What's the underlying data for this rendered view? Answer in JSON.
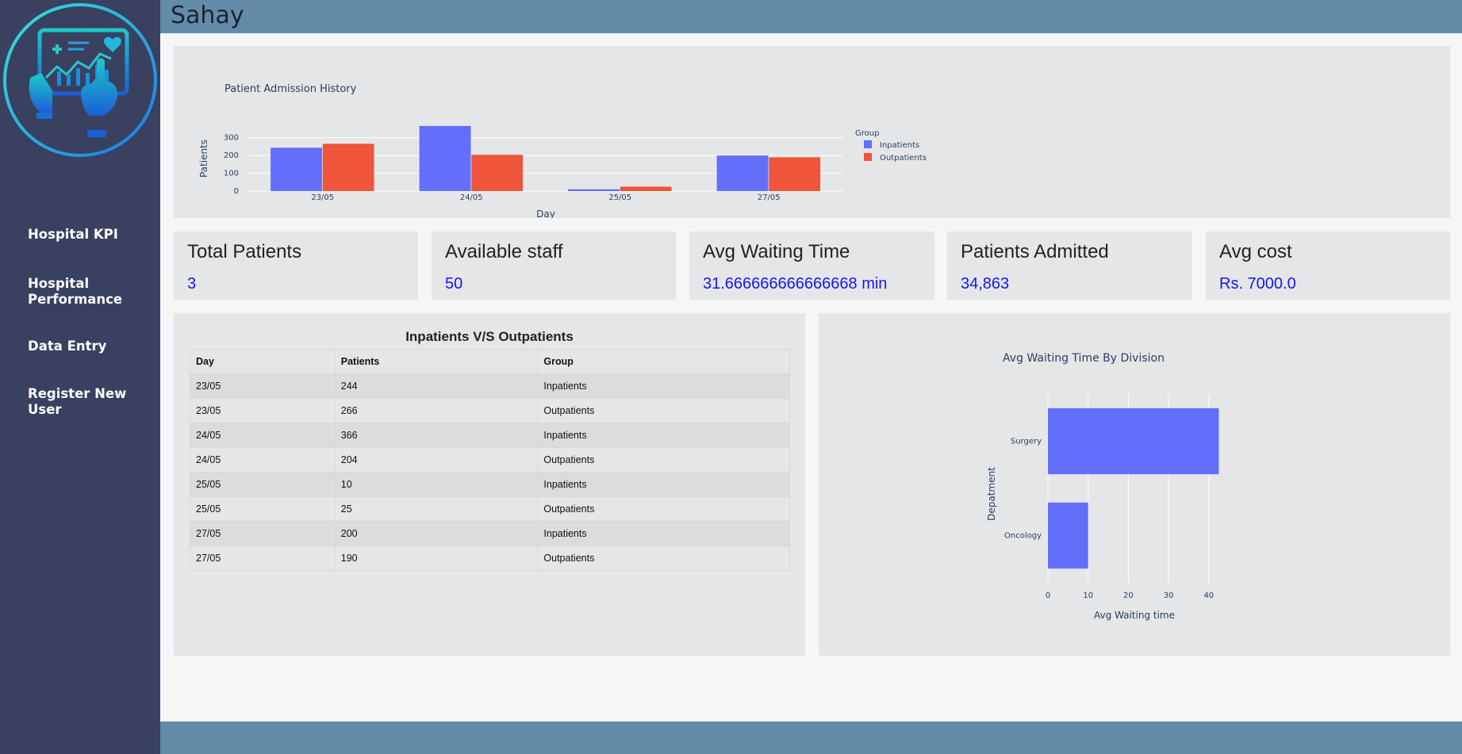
{
  "app": {
    "title": "Sahay"
  },
  "sidebar": {
    "logo_icon": "medical-dashboard-logo-icon",
    "items": [
      {
        "label": "Hospital KPI"
      },
      {
        "label": "Hospital Performance"
      },
      {
        "label": "Data Entry"
      },
      {
        "label": "Register New User"
      }
    ]
  },
  "kpis": [
    {
      "title": "Total Patients",
      "value": "3"
    },
    {
      "title": "Available staff",
      "value": "50"
    },
    {
      "title": "Avg Waiting Time",
      "value": "31.666666666666668 min"
    },
    {
      "title": "Patients Admitted",
      "value": "34,863"
    },
    {
      "title": "Avg cost",
      "value": "Rs. 7000.0"
    }
  ],
  "table": {
    "title": "Inpatients V/S Outpatients",
    "columns": [
      "Day",
      "Patients",
      "Group"
    ],
    "rows": [
      [
        "23/05",
        "244",
        "Inpatients"
      ],
      [
        "23/05",
        "266",
        "Outpatients"
      ],
      [
        "24/05",
        "366",
        "Inpatients"
      ],
      [
        "24/05",
        "204",
        "Outpatients"
      ],
      [
        "25/05",
        "10",
        "Inpatients"
      ],
      [
        "25/05",
        "25",
        "Outpatients"
      ],
      [
        "27/05",
        "200",
        "Inpatients"
      ],
      [
        "27/05",
        "190",
        "Outpatients"
      ]
    ]
  },
  "colors": {
    "inpatients": "#636efa",
    "outpatients": "#ef553b",
    "accent_value": "#1414ff",
    "header": "#648ca8",
    "sidebar": "#394060"
  },
  "chart_data": [
    {
      "type": "bar",
      "title": "Patient Admission History",
      "xlabel": "Day",
      "ylabel": "Patients",
      "categories": [
        "23/05",
        "24/05",
        "25/05",
        "27/05"
      ],
      "legend_title": "Group",
      "legend_position": "right",
      "ylim": [
        0,
        370
      ],
      "yticks": [
        0,
        100,
        200,
        300
      ],
      "series": [
        {
          "name": "Inpatients",
          "values": [
            244,
            366,
            10,
            200
          ],
          "color": "#636efa"
        },
        {
          "name": "Outpatients",
          "values": [
            266,
            204,
            25,
            190
          ],
          "color": "#ef553b"
        }
      ]
    },
    {
      "type": "bar",
      "orientation": "horizontal",
      "title": "Avg Waiting Time By Division",
      "xlabel": "Avg Waiting time",
      "ylabel": "Depatment",
      "categories": [
        "Surgery",
        "Oncology"
      ],
      "values": [
        42.5,
        10
      ],
      "xlim": [
        0,
        43
      ],
      "xticks": [
        0,
        10,
        20,
        30,
        40
      ],
      "color": "#636efa"
    }
  ]
}
